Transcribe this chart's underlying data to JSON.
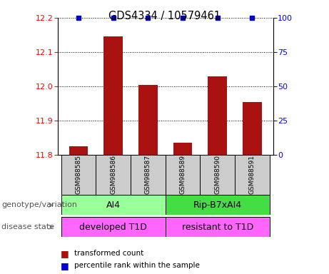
{
  "title": "GDS4334 / 10579461",
  "samples": [
    "GSM988585",
    "GSM988586",
    "GSM988587",
    "GSM988589",
    "GSM988590",
    "GSM988591"
  ],
  "bar_values": [
    11.825,
    12.145,
    12.005,
    11.835,
    12.03,
    11.955
  ],
  "ylim_left": [
    11.8,
    12.2
  ],
  "ylim_right": [
    0,
    100
  ],
  "yticks_left": [
    11.8,
    11.9,
    12.0,
    12.1,
    12.2
  ],
  "yticks_right": [
    0,
    25,
    50,
    75,
    100
  ],
  "bar_color": "#aa1111",
  "percentile_color": "#0000cc",
  "group1_indices": [
    0,
    1,
    2
  ],
  "group2_indices": [
    3,
    4,
    5
  ],
  "genotype_group1": "AI4",
  "genotype_group2": "Rip-B7xAI4",
  "disease_group1": "developed T1D",
  "disease_group2": "resistant to T1D",
  "genotype_color1": "#99ff99",
  "genotype_color2": "#44dd44",
  "disease_color": "#ff66ff",
  "sample_box_color": "#cccccc",
  "legend_red_label": "transformed count",
  "legend_blue_label": "percentile rank within the sample",
  "label_genotype": "genotype/variation",
  "label_disease": "disease state"
}
